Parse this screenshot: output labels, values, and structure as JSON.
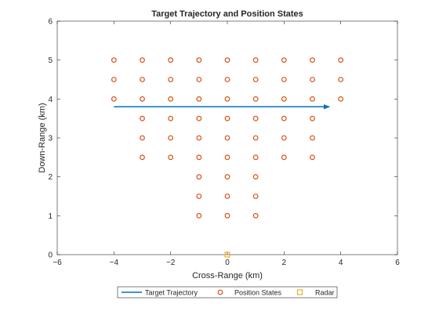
{
  "chart_data": {
    "type": "scatter",
    "title": "Target Trajectory and Position States",
    "xlabel": "Cross-Range (km)",
    "ylabel": "Down-Range (km)",
    "xlim": [
      -6,
      6
    ],
    "ylim": [
      0,
      6
    ],
    "x_ticks": [
      "−6",
      "−4",
      "−2",
      "0",
      "2",
      "4",
      "6"
    ],
    "y_ticks": [
      "0",
      "1",
      "2",
      "3",
      "4",
      "5",
      "6"
    ],
    "grid": false,
    "legend_position": "bottom-outside",
    "series": [
      {
        "name": "Target Trajectory",
        "kind": "line-arrow",
        "color": "#0072BD",
        "points": [
          [
            -4,
            3.8
          ],
          [
            3.6,
            3.8
          ]
        ]
      },
      {
        "name": "Position States",
        "kind": "circle-marker",
        "color": "#D95319",
        "points": [
          [
            -4,
            5
          ],
          [
            -3,
            5
          ],
          [
            -2,
            5
          ],
          [
            -1,
            5
          ],
          [
            0,
            5
          ],
          [
            1,
            5
          ],
          [
            2,
            5
          ],
          [
            3,
            5
          ],
          [
            4,
            5
          ],
          [
            -4,
            4.5
          ],
          [
            -3,
            4.5
          ],
          [
            -2,
            4.5
          ],
          [
            -1,
            4.5
          ],
          [
            0,
            4.5
          ],
          [
            1,
            4.5
          ],
          [
            2,
            4.5
          ],
          [
            3,
            4.5
          ],
          [
            4,
            4.5
          ],
          [
            -4,
            4
          ],
          [
            -3,
            4
          ],
          [
            -2,
            4
          ],
          [
            -1,
            4
          ],
          [
            0,
            4
          ],
          [
            1,
            4
          ],
          [
            2,
            4
          ],
          [
            3,
            4
          ],
          [
            4,
            4
          ],
          [
            -3,
            3.5
          ],
          [
            -2,
            3.5
          ],
          [
            -1,
            3.5
          ],
          [
            0,
            3.5
          ],
          [
            1,
            3.5
          ],
          [
            2,
            3.5
          ],
          [
            3,
            3.5
          ],
          [
            -3,
            3
          ],
          [
            -2,
            3
          ],
          [
            -1,
            3
          ],
          [
            0,
            3
          ],
          [
            1,
            3
          ],
          [
            2,
            3
          ],
          [
            3,
            3
          ],
          [
            -3,
            2.5
          ],
          [
            -2,
            2.5
          ],
          [
            -1,
            2.5
          ],
          [
            0,
            2.5
          ],
          [
            1,
            2.5
          ],
          [
            2,
            2.5
          ],
          [
            3,
            2.5
          ],
          [
            -1,
            2
          ],
          [
            0,
            2
          ],
          [
            1,
            2
          ],
          [
            -1,
            1.5
          ],
          [
            0,
            1.5
          ],
          [
            1,
            1.5
          ],
          [
            -1,
            1
          ],
          [
            0,
            1
          ],
          [
            1,
            1
          ]
        ]
      },
      {
        "name": "Radar",
        "kind": "square-marker",
        "color": "#EDB120",
        "points": [
          [
            0,
            0
          ]
        ]
      }
    ]
  }
}
